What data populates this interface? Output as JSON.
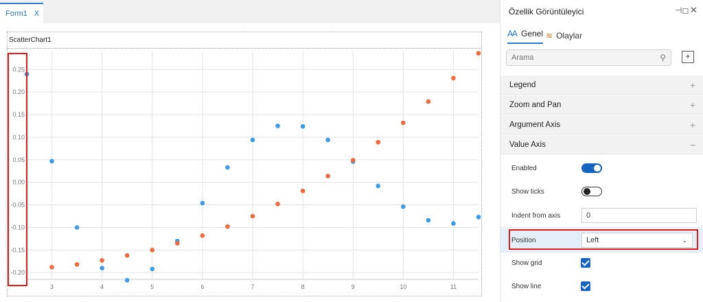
{
  "designer": {
    "tab_label": "Form1",
    "tab_close": "X",
    "chart_name": "ScatterChart1"
  },
  "property_viewer": {
    "title": "Özellik Görüntüleyici",
    "tabs": [
      {
        "label": "Genel",
        "icon": "properties-icon",
        "active": true
      },
      {
        "label": "Olaylar",
        "icon": "events-icon",
        "active": false
      }
    ],
    "search_placeholder": "Arama",
    "sections": [
      {
        "label": "Legend",
        "expanded": false
      },
      {
        "label": "Zoom and Pan",
        "expanded": false
      },
      {
        "label": "Argument Axis",
        "expanded": false
      },
      {
        "label": "Value Axis",
        "expanded": true
      }
    ],
    "value_axis": {
      "enabled": {
        "label": "Enabled",
        "value": true
      },
      "show_ticks": {
        "label": "Show ticks",
        "value": false
      },
      "indent_from_axis": {
        "label": "Indent from axis",
        "value": "0"
      },
      "position": {
        "label": "Position",
        "value": "Left"
      },
      "show_grid": {
        "label": "Show grid",
        "value": true
      },
      "show_line": {
        "label": "Show line",
        "value": true
      }
    },
    "accent_color": "#1565c0",
    "highlight_color": "#e01b1b"
  },
  "chart_data": {
    "type": "scatter",
    "title": "",
    "xlabel": "",
    "ylabel": "",
    "x_ticks": [
      3,
      4,
      5,
      6,
      7,
      8,
      9,
      10,
      11
    ],
    "y_ticks": [
      0.25,
      0.2,
      0.15,
      0.1,
      0.05,
      0.0,
      -0.05,
      -0.1,
      -0.15,
      -0.2
    ],
    "y_tick_labels": [
      "0.25",
      "0.20",
      "0.15",
      "0.10",
      "0.05",
      "0.00",
      "-0.05",
      "-0.10",
      "-0.15",
      "-0.20"
    ],
    "xlim": [
      2.5,
      11.5
    ],
    "ylim": [
      -0.215,
      0.29
    ],
    "grid": true,
    "series": [
      {
        "color": "#3b9be6",
        "points": [
          [
            2.5,
            0.24
          ],
          [
            3,
            0.047
          ],
          [
            3.5,
            -0.1
          ],
          [
            4,
            -0.19
          ],
          [
            4.5,
            -0.217
          ],
          [
            5,
            -0.192
          ],
          [
            5.5,
            -0.13
          ],
          [
            6,
            -0.046
          ],
          [
            6.5,
            0.033
          ],
          [
            7,
            0.094
          ],
          [
            7.5,
            0.125
          ],
          [
            8,
            0.124
          ],
          [
            8.5,
            0.094
          ],
          [
            9,
            0.046
          ],
          [
            9.5,
            -0.008
          ],
          [
            10,
            -0.054
          ],
          [
            10.5,
            -0.084
          ],
          [
            11,
            -0.091
          ],
          [
            11.5,
            -0.077
          ]
        ]
      },
      {
        "color": "#f06a3d",
        "points": [
          [
            3,
            -0.188
          ],
          [
            3.5,
            -0.182
          ],
          [
            4,
            -0.173
          ],
          [
            4.5,
            -0.162
          ],
          [
            5,
            -0.15
          ],
          [
            5.5,
            -0.135
          ],
          [
            6,
            -0.118
          ],
          [
            6.5,
            -0.098
          ],
          [
            7,
            -0.075
          ],
          [
            7.5,
            -0.048
          ],
          [
            8,
            -0.019
          ],
          [
            8.5,
            0.014
          ],
          [
            9,
            0.049
          ],
          [
            9.5,
            0.089
          ],
          [
            10,
            0.132
          ],
          [
            10.5,
            0.179
          ],
          [
            11,
            0.231
          ],
          [
            11.5,
            0.286
          ]
        ]
      }
    ]
  }
}
